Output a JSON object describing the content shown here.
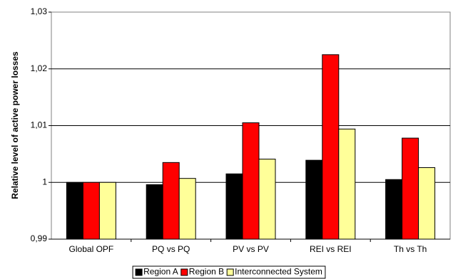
{
  "chart_data": {
    "type": "bar",
    "title": "",
    "xlabel": "",
    "ylabel": "Relative level of active power losses",
    "categories": [
      "Global OPF",
      "PQ vs PQ",
      "PV vs PV",
      "REI vs REI",
      "Th vs Th"
    ],
    "series": [
      {
        "name": "Region A",
        "color": "#000000",
        "values": [
          1.0,
          0.9996,
          1.0015,
          1.0039,
          1.0005
        ]
      },
      {
        "name": "Region B",
        "color": "#ff0000",
        "values": [
          1.0,
          1.0035,
          1.0105,
          1.0225,
          1.0078
        ]
      },
      {
        "name": "Interconnected System",
        "color": "#ffff99",
        "values": [
          1.0,
          1.0007,
          1.0041,
          1.0094,
          1.0026
        ]
      }
    ],
    "ylim": [
      0.99,
      1.03
    ],
    "yticks": [
      0.99,
      1.0,
      1.01,
      1.02,
      1.03
    ],
    "ytick_labels": [
      "0,99",
      "1",
      "1,01",
      "1,02",
      "1,03"
    ],
    "grid": "horizontal",
    "legend": "bottom"
  }
}
